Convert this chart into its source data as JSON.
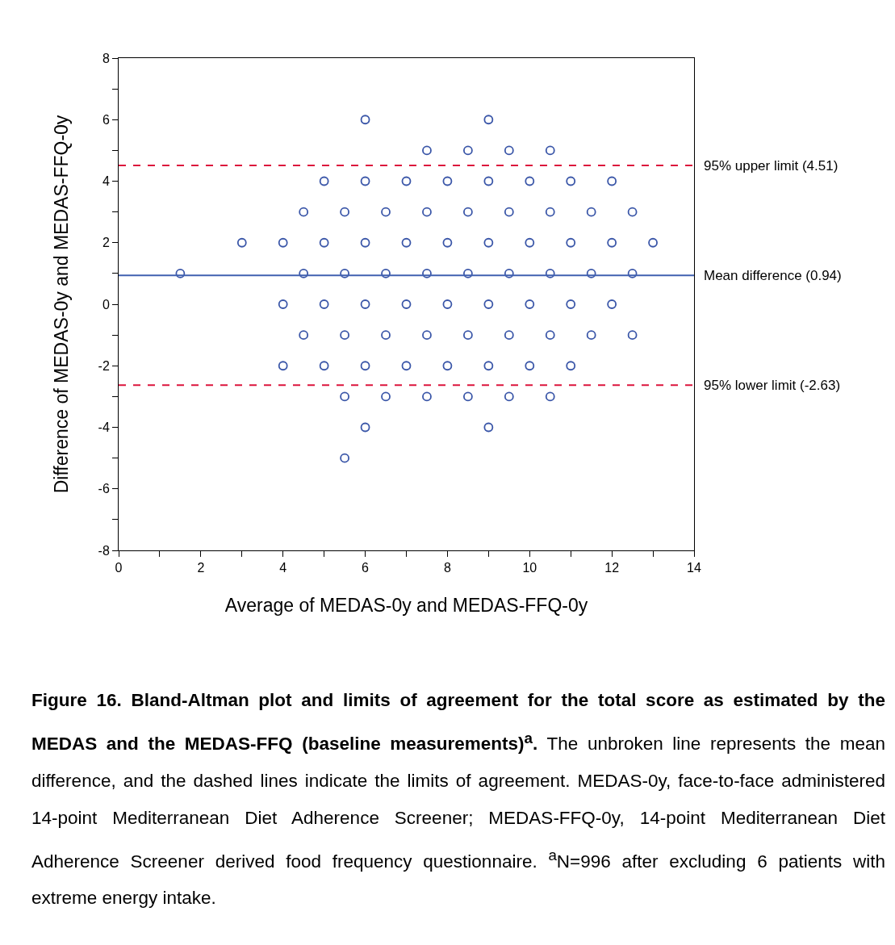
{
  "chart_data": {
    "type": "scatter",
    "xlabel": "Average of MEDAS-0y and MEDAS-FFQ-0y",
    "ylabel": "Difference of MEDAS-0y and MEDAS-FFQ-0y",
    "x": [
      6,
      9,
      7.5,
      8.5,
      9.5,
      10.5,
      5,
      6,
      7,
      8,
      9,
      10,
      11,
      12,
      4.5,
      5.5,
      6.5,
      7.5,
      8.5,
      9.5,
      10.5,
      11.5,
      12.5,
      3,
      4,
      5,
      6,
      7,
      8,
      9,
      10,
      11,
      12,
      13,
      1.5,
      4.5,
      5.5,
      6.5,
      7.5,
      8.5,
      9.5,
      10.5,
      11.5,
      12.5,
      4,
      5,
      6,
      7,
      8,
      9,
      10,
      11,
      12,
      4.5,
      5.5,
      6.5,
      7.5,
      8.5,
      9.5,
      10.5,
      11.5,
      12.5,
      4,
      5,
      6,
      7,
      8,
      9,
      10,
      11,
      5.5,
      6.5,
      7.5,
      8.5,
      9.5,
      10.5,
      6,
      9,
      5.5
    ],
    "series": [
      {
        "color": "#3a56a8",
        "values": [
          6,
          6,
          5,
          5,
          5,
          5,
          4,
          4,
          4,
          4,
          4,
          4,
          4,
          4,
          3,
          3,
          3,
          3,
          3,
          3,
          3,
          3,
          3,
          2,
          2,
          2,
          2,
          2,
          2,
          2,
          2,
          2,
          2,
          2,
          1,
          1,
          1,
          1,
          1,
          1,
          1,
          1,
          1,
          1,
          0,
          0,
          0,
          0,
          0,
          0,
          0,
          0,
          0,
          -1,
          -1,
          -1,
          -1,
          -1,
          -1,
          -1,
          -1,
          -1,
          -2,
          -2,
          -2,
          -2,
          -2,
          -2,
          -2,
          -2,
          -3,
          -3,
          -3,
          -3,
          -3,
          -3,
          -4,
          -4,
          -5
        ]
      }
    ],
    "marker": "circle",
    "grid": false,
    "xlim": [
      0,
      14
    ],
    "xticks": [
      0,
      {
        "value": 1,
        "label": null
      },
      2,
      {
        "value": 3,
        "label": null
      },
      4,
      {
        "value": 5,
        "label": null
      },
      6,
      {
        "value": 7,
        "label": null
      },
      8,
      {
        "value": 9,
        "label": null
      },
      10,
      {
        "value": 11,
        "label": null
      },
      12,
      {
        "value": 13,
        "label": null
      },
      14
    ],
    "ylim": [
      -8,
      8
    ],
    "yticks": [
      -8,
      {
        "value": -7,
        "label": null
      },
      -6,
      {
        "value": -5,
        "label": null
      },
      -4,
      {
        "value": -3,
        "label": null
      },
      -2,
      {
        "value": -1,
        "label": null
      },
      0,
      {
        "value": 1,
        "label": null
      },
      2,
      {
        "value": 3,
        "label": null
      },
      4,
      {
        "value": 5,
        "label": null
      },
      6,
      {
        "value": 7,
        "label": null
      },
      8
    ],
    "ref_lines": [
      {
        "axis": "y",
        "value": 4.51,
        "label": "95% upper limit (4.51)",
        "color": "#dc143c",
        "line_style": "dashed"
      },
      {
        "axis": "y",
        "value": 0.94,
        "label": "Mean difference (0.94)",
        "color": "#4060b0",
        "line_style": "solid"
      },
      {
        "axis": "y",
        "value": -2.63,
        "label": "95% lower limit (-2.63)",
        "color": "#dc143c",
        "line_style": "dashed"
      }
    ],
    "annotations": [
      "Figure 16. Bland-Altman plot and limits of agreement for the total score as estimated by the MEDAS and the MEDAS-FFQ (baseline measurements)$^{a}$.",
      "The unbroken line represents the mean difference, and the dashed lines indicate the limits of agreement. MEDAS-0y, face-to-face administered 14-point Mediterranean Diet Adherence Screener; MEDAS-FFQ-0y, 14-point Mediterranean Diet Adherence Screener derived food frequency questionnaire. $^{a}$N=996 after excluding 6 patients with extreme energy intake."
    ]
  }
}
